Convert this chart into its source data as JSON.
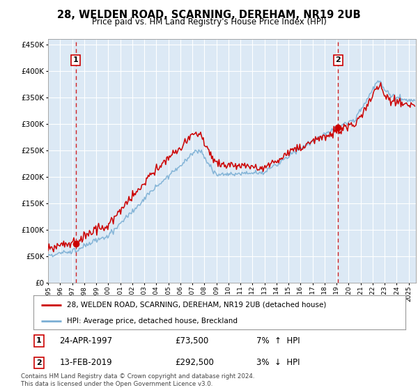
{
  "title": "28, WELDEN ROAD, SCARNING, DEREHAM, NR19 2UB",
  "subtitle": "Price paid vs. HM Land Registry's House Price Index (HPI)",
  "ylim": [
    0,
    460000
  ],
  "yticks": [
    0,
    50000,
    100000,
    150000,
    200000,
    250000,
    300000,
    350000,
    400000,
    450000
  ],
  "xstart_year": 1995,
  "xend_year": 2025,
  "marker1_year": 1997.3,
  "marker1_price": 73500,
  "marker1_label": "1",
  "marker1_date": "24-APR-1997",
  "marker1_pct": "7%",
  "marker1_dir": "↑",
  "marker2_year": 2019.12,
  "marker2_price": 292500,
  "marker2_label": "2",
  "marker2_date": "13-FEB-2019",
  "marker2_pct": "3%",
  "marker2_dir": "↓",
  "legend_line1": "28, WELDEN ROAD, SCARNING, DEREHAM, NR19 2UB (detached house)",
  "legend_line2": "HPI: Average price, detached house, Breckland",
  "footnote": "Contains HM Land Registry data © Crown copyright and database right 2024.\nThis data is licensed under the Open Government Licence v3.0.",
  "price_line_color": "#cc0000",
  "hpi_line_color": "#7bafd4",
  "plot_bg_color": "#dce9f5",
  "grid_color": "#ffffff",
  "marker_box_color": "#cc0000",
  "dashed_line_color": "#cc0000",
  "fig_bg_color": "#ffffff",
  "title_fontsize": 10.5,
  "subtitle_fontsize": 8.5
}
